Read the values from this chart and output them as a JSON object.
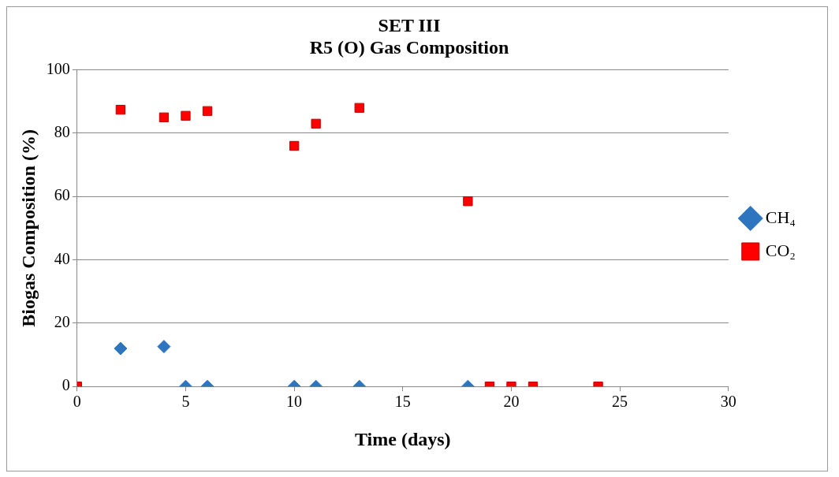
{
  "chart_data": {
    "type": "scatter",
    "title": "SET III",
    "subtitle": "R5 (O) Gas Composition",
    "xlabel": "Time (days)",
    "ylabel": "Biogas Composition (%)",
    "xlim": [
      0,
      30
    ],
    "xticks": [
      0,
      5,
      10,
      15,
      20,
      25,
      30
    ],
    "ylim": [
      0,
      100
    ],
    "yticks": [
      0,
      20,
      40,
      60,
      80,
      100
    ],
    "grid": "y",
    "legend": "right",
    "series": [
      {
        "name": "CH₄",
        "color": "#2e75c0",
        "marker": "diamond",
        "x": [
          2,
          4,
          5,
          6,
          10,
          11,
          13,
          18
        ],
        "values": [
          12,
          12.6,
          0,
          0,
          0,
          0,
          0,
          0
        ]
      },
      {
        "name": "CO₂",
        "color": "#ff0000",
        "marker": "square",
        "x": [
          0,
          2,
          4,
          5,
          6,
          10,
          11,
          13,
          18,
          19,
          20,
          21,
          24
        ],
        "values": [
          0,
          87.4,
          85,
          85.5,
          87,
          76,
          83,
          88,
          58.5,
          0,
          0,
          0,
          0
        ]
      }
    ]
  }
}
